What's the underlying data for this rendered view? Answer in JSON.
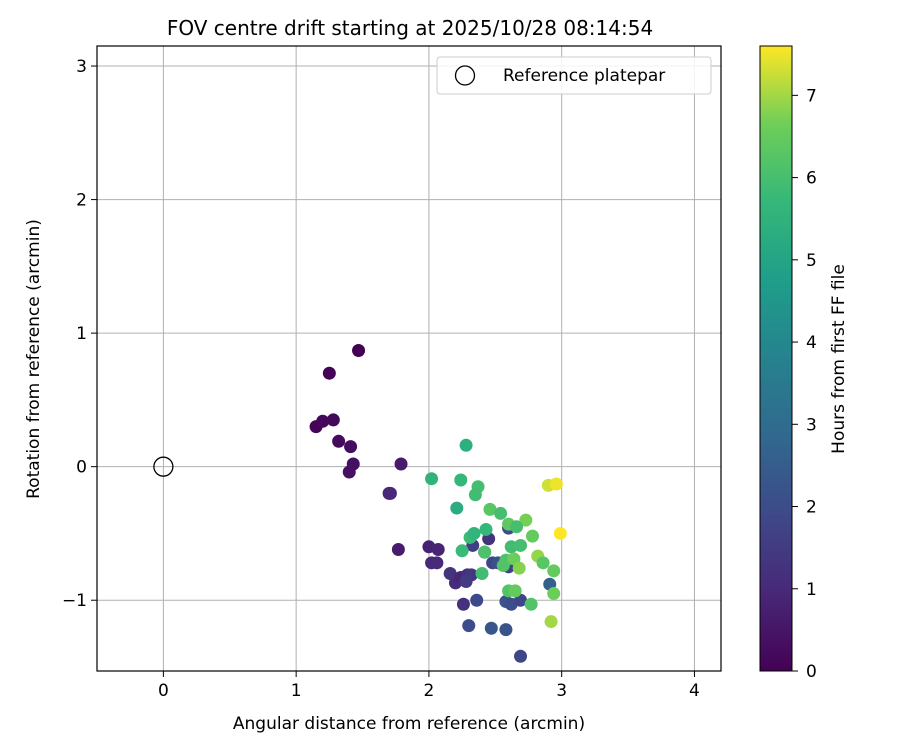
{
  "chart_data": {
    "type": "scatter",
    "title": "FOV centre drift starting at 2025/10/28 08:14:54",
    "xlabel": "Angular distance from reference (arcmin)",
    "ylabel": "Rotation from reference (arcmin)",
    "xlim": [
      -0.5,
      4.2
    ],
    "ylim": [
      -1.53,
      3.15
    ],
    "xticks": [
      0,
      1,
      2,
      3,
      4
    ],
    "yticks": [
      -1,
      0,
      1,
      2,
      3
    ],
    "xtick_labels": [
      "0",
      "1",
      "2",
      "3",
      "4"
    ],
    "ytick_labels": [
      "−1",
      "0",
      "1",
      "2",
      "3"
    ],
    "grid": true,
    "legend": {
      "position": "top-right",
      "entries": [
        "Reference platepar"
      ]
    },
    "reference_point": {
      "name": "Reference platepar",
      "x": 0,
      "y": 0
    },
    "colorbar": {
      "label": "Hours from first FF file",
      "colormap": "viridis",
      "range": [
        0,
        7.6
      ],
      "ticks": [
        0,
        1,
        2,
        3,
        4,
        5,
        6,
        7
      ],
      "tick_labels": [
        "0",
        "1",
        "2",
        "3",
        "4",
        "5",
        "6",
        "7"
      ]
    },
    "series": [
      {
        "color_by": "hours",
        "points": [
          {
            "x": 1.47,
            "y": 0.87,
            "c": 0.0
          },
          {
            "x": 1.25,
            "y": 0.7,
            "c": 0.05
          },
          {
            "x": 1.15,
            "y": 0.3,
            "c": 0.1
          },
          {
            "x": 1.2,
            "y": 0.34,
            "c": 0.15
          },
          {
            "x": 1.28,
            "y": 0.35,
            "c": 0.2
          },
          {
            "x": 1.32,
            "y": 0.19,
            "c": 0.25
          },
          {
            "x": 1.41,
            "y": 0.15,
            "c": 0.3
          },
          {
            "x": 1.43,
            "y": 0.02,
            "c": 0.35
          },
          {
            "x": 1.4,
            "y": -0.04,
            "c": 0.4
          },
          {
            "x": 1.79,
            "y": 0.02,
            "c": 0.6
          },
          {
            "x": 1.7,
            "y": -0.2,
            "c": 0.9
          },
          {
            "x": 1.71,
            "y": -0.2,
            "c": 0.95
          },
          {
            "x": 1.77,
            "y": -0.62,
            "c": 0.65
          },
          {
            "x": 2.0,
            "y": -0.6,
            "c": 0.8
          },
          {
            "x": 2.07,
            "y": -0.62,
            "c": 0.85
          },
          {
            "x": 2.02,
            "y": -0.72,
            "c": 1.0
          },
          {
            "x": 2.06,
            "y": -0.72,
            "c": 1.05
          },
          {
            "x": 2.2,
            "y": -0.87,
            "c": 1.1
          },
          {
            "x": 2.16,
            "y": -0.8,
            "c": 1.3
          },
          {
            "x": 2.24,
            "y": -0.83,
            "c": 0.9
          },
          {
            "x": 2.29,
            "y": -0.81,
            "c": 1.2
          },
          {
            "x": 2.32,
            "y": -0.81,
            "c": 1.4
          },
          {
            "x": 2.28,
            "y": -0.86,
            "c": 1.5
          },
          {
            "x": 2.26,
            "y": -1.03,
            "c": 1.2
          },
          {
            "x": 2.36,
            "y": -1.0,
            "c": 1.9
          },
          {
            "x": 2.3,
            "y": -1.19,
            "c": 2.0
          },
          {
            "x": 2.33,
            "y": -0.59,
            "c": 1.6
          },
          {
            "x": 2.45,
            "y": -0.54,
            "c": 1.3
          },
          {
            "x": 2.42,
            "y": -0.64,
            "c": 1.0
          },
          {
            "x": 2.48,
            "y": -0.72,
            "c": 1.8
          },
          {
            "x": 2.52,
            "y": -0.72,
            "c": 2.1
          },
          {
            "x": 2.6,
            "y": -0.46,
            "c": 2.0
          },
          {
            "x": 2.58,
            "y": -1.01,
            "c": 2.2
          },
          {
            "x": 2.62,
            "y": -1.03,
            "c": 2.0
          },
          {
            "x": 2.69,
            "y": -1.0,
            "c": 1.8
          },
          {
            "x": 2.47,
            "y": -1.21,
            "c": 2.3
          },
          {
            "x": 2.58,
            "y": -1.22,
            "c": 2.2
          },
          {
            "x": 2.69,
            "y": -1.42,
            "c": 1.8
          },
          {
            "x": 2.91,
            "y": -0.88,
            "c": 2.6
          },
          {
            "x": 2.6,
            "y": -0.75,
            "c": 1.7
          },
          {
            "x": 2.28,
            "y": 0.16,
            "c": 5.4
          },
          {
            "x": 2.02,
            "y": -0.09,
            "c": 5.5
          },
          {
            "x": 2.24,
            "y": -0.1,
            "c": 5.7
          },
          {
            "x": 2.37,
            "y": -0.15,
            "c": 6.0
          },
          {
            "x": 2.35,
            "y": -0.21,
            "c": 5.9
          },
          {
            "x": 2.21,
            "y": -0.31,
            "c": 5.3
          },
          {
            "x": 2.46,
            "y": -0.32,
            "c": 6.3
          },
          {
            "x": 2.54,
            "y": -0.35,
            "c": 6.0
          },
          {
            "x": 2.31,
            "y": -0.53,
            "c": 5.8
          },
          {
            "x": 2.34,
            "y": -0.5,
            "c": 5.6
          },
          {
            "x": 2.43,
            "y": -0.47,
            "c": 5.7
          },
          {
            "x": 2.25,
            "y": -0.63,
            "c": 5.8
          },
          {
            "x": 2.42,
            "y": -0.64,
            "c": 6.1
          },
          {
            "x": 2.4,
            "y": -0.8,
            "c": 5.9
          },
          {
            "x": 2.6,
            "y": -0.43,
            "c": 6.4
          },
          {
            "x": 2.73,
            "y": -0.4,
            "c": 6.7
          },
          {
            "x": 2.66,
            "y": -0.45,
            "c": 6.0
          },
          {
            "x": 2.62,
            "y": -0.6,
            "c": 5.9
          },
          {
            "x": 2.69,
            "y": -0.59,
            "c": 6.0
          },
          {
            "x": 2.58,
            "y": -0.7,
            "c": 6.1
          },
          {
            "x": 2.56,
            "y": -0.74,
            "c": 6.2
          },
          {
            "x": 2.64,
            "y": -0.69,
            "c": 6.6
          },
          {
            "x": 2.68,
            "y": -0.76,
            "c": 6.8
          },
          {
            "x": 2.78,
            "y": -0.52,
            "c": 6.5
          },
          {
            "x": 2.82,
            "y": -0.67,
            "c": 6.9
          },
          {
            "x": 2.86,
            "y": -0.72,
            "c": 6.3
          },
          {
            "x": 2.94,
            "y": -0.78,
            "c": 6.5
          },
          {
            "x": 2.6,
            "y": -0.93,
            "c": 6.2
          },
          {
            "x": 2.65,
            "y": -0.93,
            "c": 6.5
          },
          {
            "x": 2.77,
            "y": -1.03,
            "c": 6.2
          },
          {
            "x": 2.94,
            "y": -0.95,
            "c": 6.6
          },
          {
            "x": 2.92,
            "y": -1.16,
            "c": 7.0
          },
          {
            "x": 2.9,
            "y": -0.14,
            "c": 7.3
          },
          {
            "x": 2.96,
            "y": -0.13,
            "c": 7.5
          },
          {
            "x": 2.99,
            "y": -0.5,
            "c": 7.6
          }
        ]
      }
    ]
  }
}
